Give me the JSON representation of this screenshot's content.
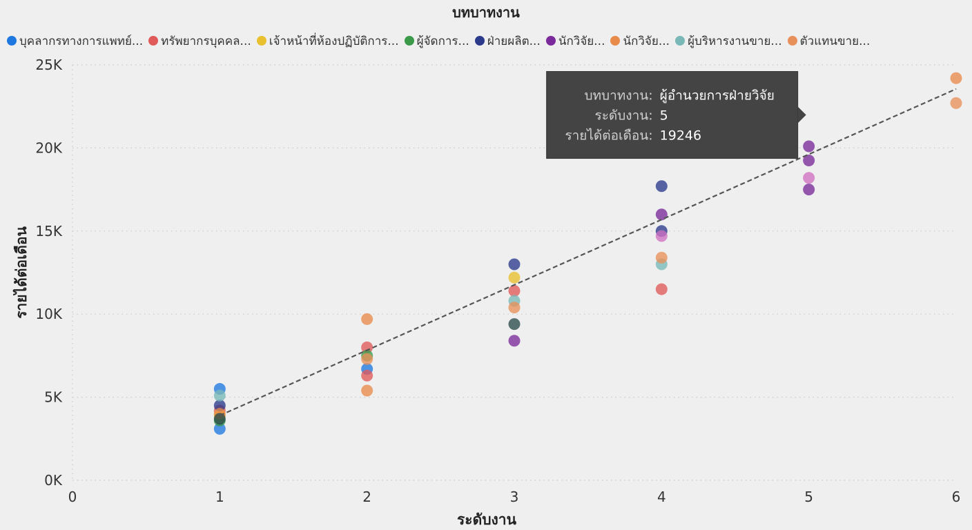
{
  "chart_data": {
    "type": "scatter",
    "legend_title": "บทบาทงาน",
    "legend_position": "top",
    "xlabel": "ระดับงาน",
    "ylabel": "รายได้ต่อเดือน",
    "xlim": [
      0,
      6
    ],
    "ylim": [
      0,
      25000
    ],
    "x_ticks": [
      0,
      1,
      2,
      3,
      4,
      5,
      6
    ],
    "y_ticks": [
      0,
      5000,
      10000,
      15000,
      20000,
      25000
    ],
    "y_tick_labels": [
      "0K",
      "5K",
      "10K",
      "15K",
      "20K",
      "25K"
    ],
    "grid": true,
    "trend_line": {
      "x": [
        1,
        6
      ],
      "y": [
        3900,
        23550
      ],
      "color": "#555555",
      "style": "dashed"
    },
    "series": [
      {
        "name": "บุคลากรทางการแพทย์...",
        "color": "#1f78e0",
        "points": [
          [
            1,
            3100
          ],
          [
            1,
            5500
          ],
          [
            2,
            6700
          ]
        ]
      },
      {
        "name": "ทรัพยากรบุคคล...",
        "color": "#e05a5a",
        "points": [
          [
            1,
            4200
          ],
          [
            2,
            8000
          ],
          [
            2,
            6300
          ],
          [
            3,
            11400
          ],
          [
            4,
            11500
          ]
        ]
      },
      {
        "name": "เจ้าหน้าที่ห้องปฏิบัติการ...",
        "color": "#e8c030",
        "points": [
          [
            1,
            3900
          ],
          [
            3,
            12200
          ]
        ]
      },
      {
        "name": "ผู้จัดการ...",
        "color": "#3a9a4a",
        "points": [
          [
            1,
            3600
          ],
          [
            2,
            7500
          ]
        ]
      },
      {
        "name": "ฝ่ายผลิต...",
        "color": "#2c3a8c",
        "points": [
          [
            1,
            4500
          ],
          [
            3,
            13000
          ],
          [
            4,
            17700
          ],
          [
            4,
            15000
          ]
        ]
      },
      {
        "name": "นักวิจัย...",
        "color": "#7a2a9a",
        "points": [
          [
            3,
            8400
          ],
          [
            4,
            16000
          ],
          [
            5,
            20100
          ],
          [
            5,
            19246
          ],
          [
            5,
            17500
          ]
        ]
      },
      {
        "name": "นักวิจัย...",
        "color": "#e88a4a",
        "points": [
          [
            2,
            9700
          ],
          [
            2,
            5400
          ],
          [
            1,
            4000
          ],
          [
            6,
            24200
          ]
        ]
      },
      {
        "name": "ผู้บริหารงานขาย...",
        "color": "#7ab8b8",
        "points": [
          [
            3,
            10800
          ],
          [
            4,
            13000
          ],
          [
            1,
            5100
          ]
        ]
      },
      {
        "name": "ตัวแทนขาย...",
        "color": "#e8905a",
        "points": [
          [
            6,
            22700
          ],
          [
            4,
            13400
          ],
          [
            3,
            10400
          ],
          [
            2,
            7300
          ]
        ]
      },
      {
        "name": "",
        "color": "#d070c0",
        "points": [
          [
            5,
            18200
          ],
          [
            4,
            14700
          ]
        ]
      },
      {
        "name": "",
        "color": "#2a4a4a",
        "points": [
          [
            3,
            9400
          ],
          [
            1,
            3700
          ]
        ]
      }
    ],
    "tooltip": {
      "rows": [
        {
          "key": "บทบาทงาน:",
          "value": "ผู้อำนวยการฝ่ายวิจัย"
        },
        {
          "key": "ระดับงาน:",
          "value": "5"
        },
        {
          "key": "รายได้ต่อเดือน:",
          "value": "19246"
        }
      ],
      "anchor": [
        5,
        19246
      ]
    }
  }
}
